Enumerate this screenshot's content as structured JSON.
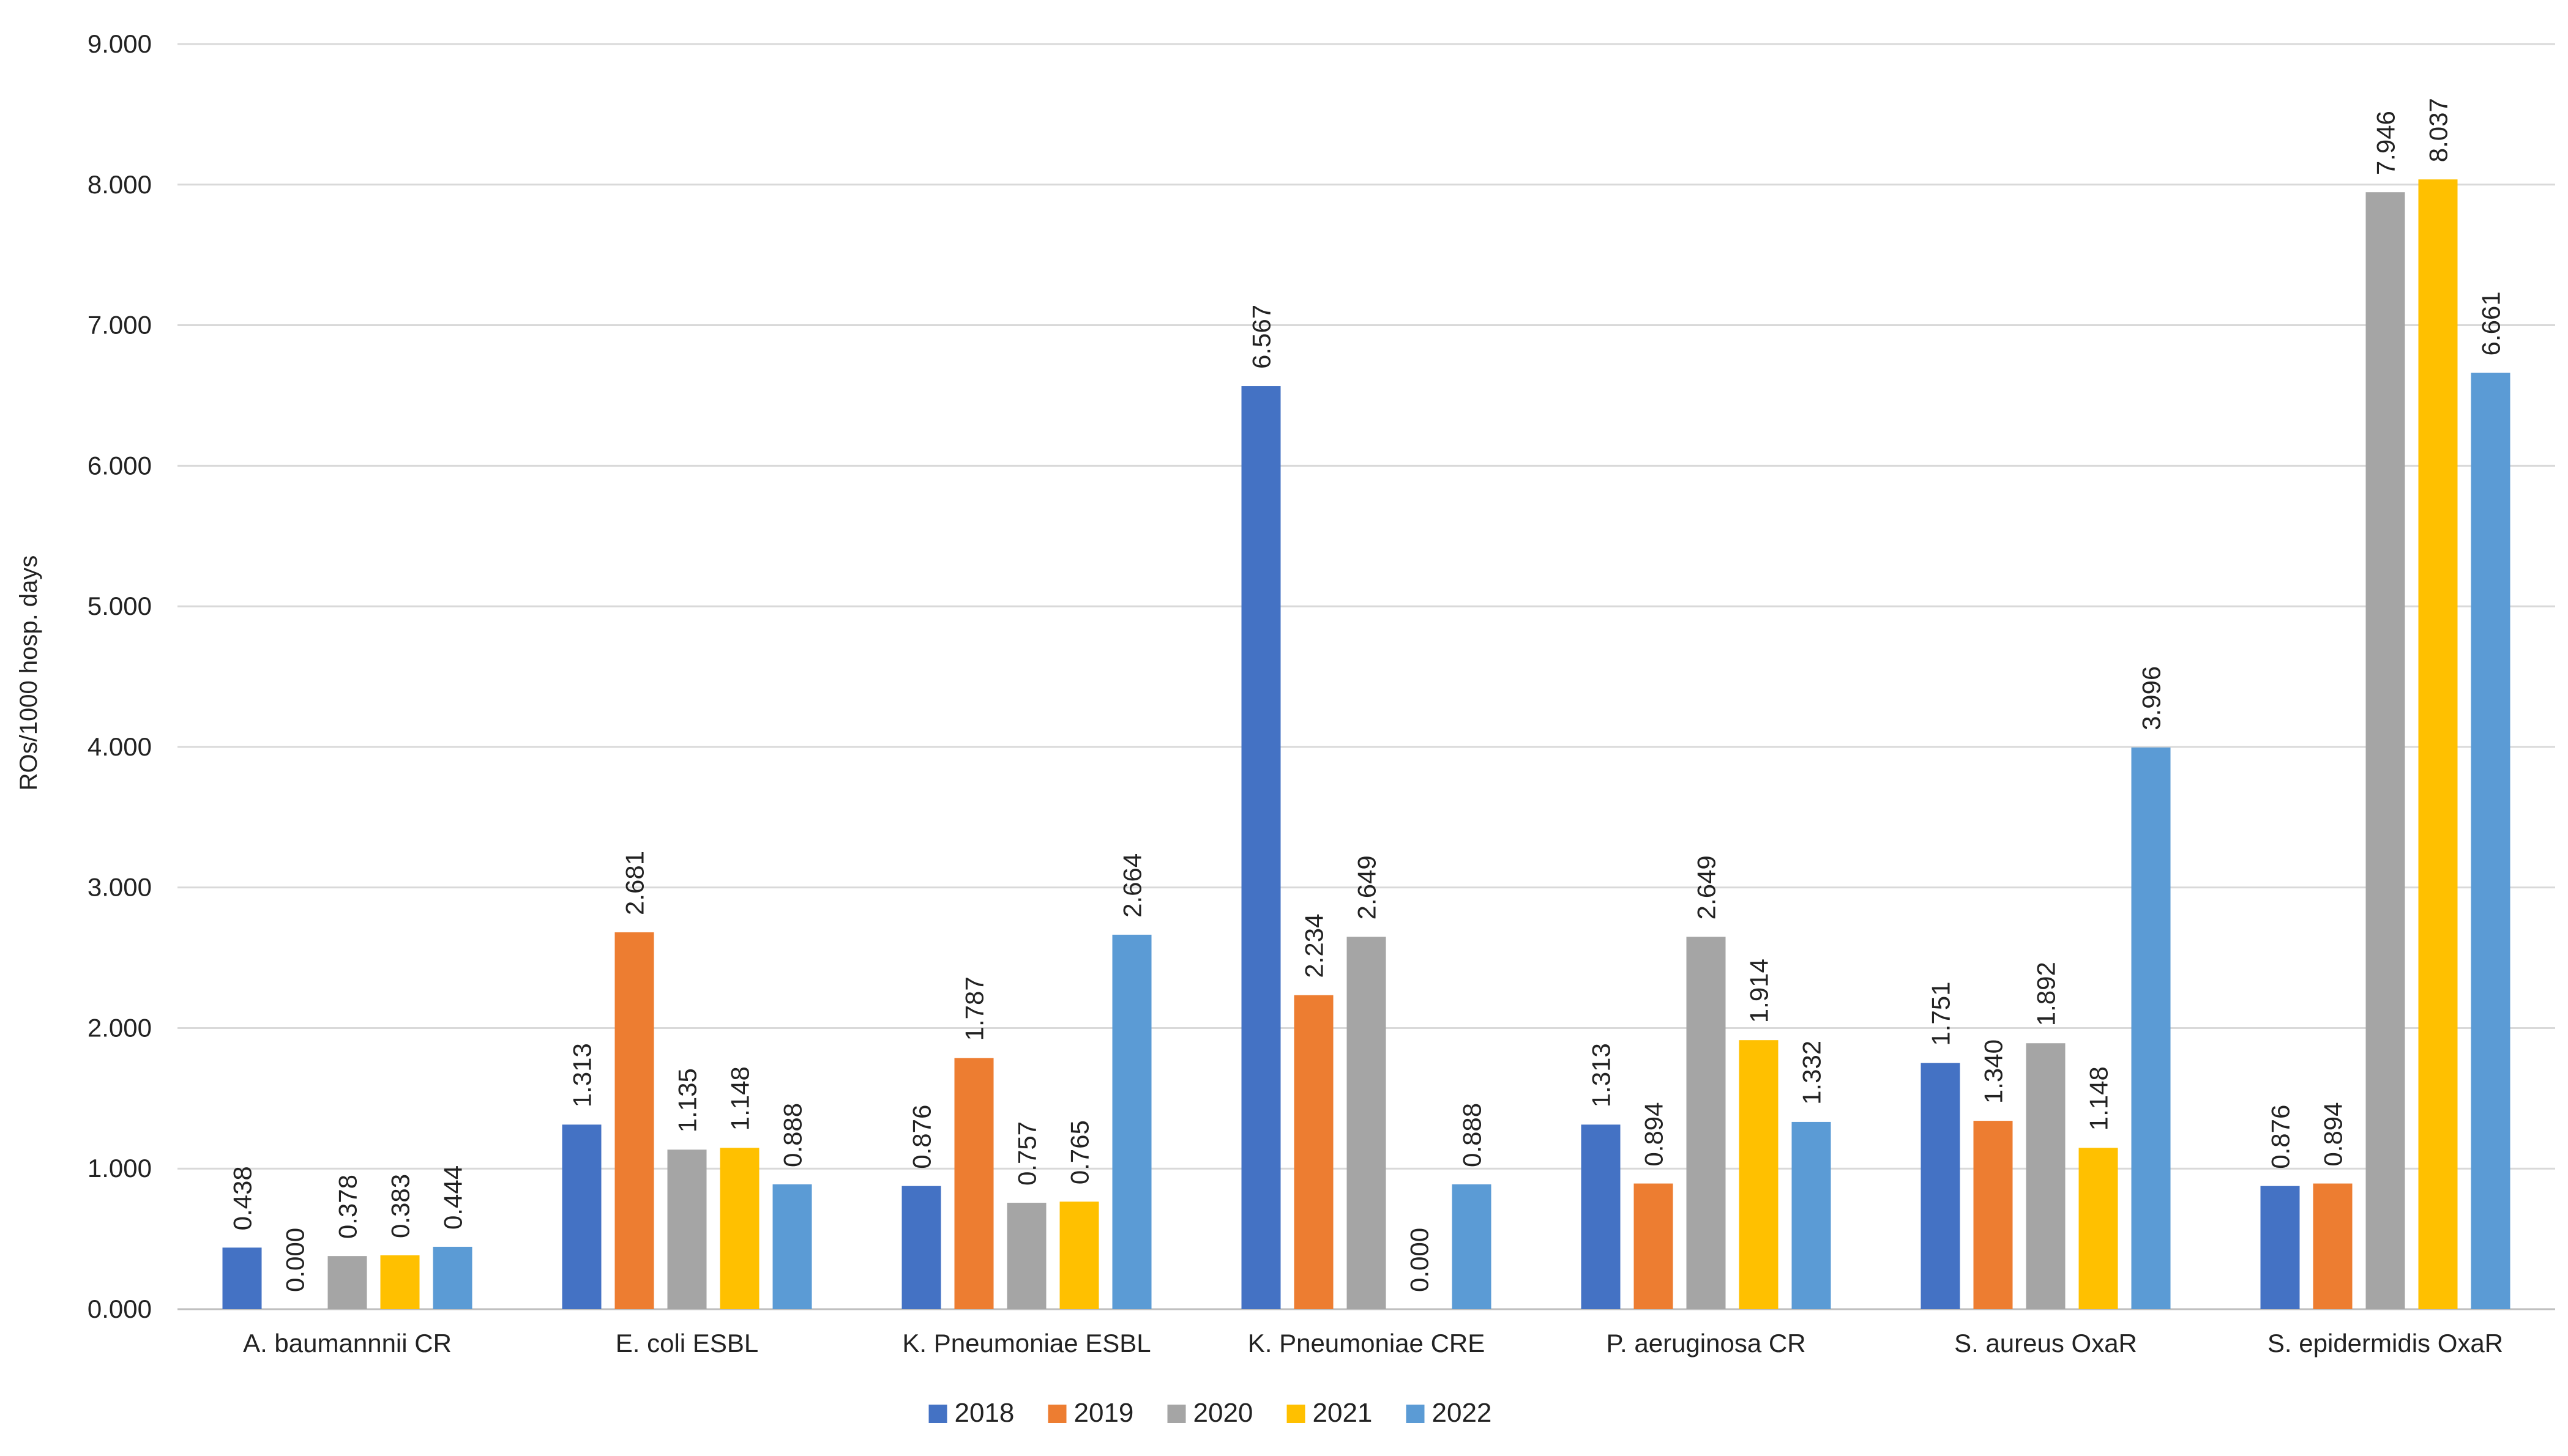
{
  "chart_data": {
    "type": "bar",
    "title": "",
    "xlabel": "",
    "ylabel": "ROs/1000 hosp. days",
    "ylim": [
      0,
      9
    ],
    "yticks": [
      0,
      1,
      2,
      3,
      4,
      5,
      6,
      7,
      8,
      9
    ],
    "ytick_labels": [
      "0.000",
      "1.000",
      "2.000",
      "3.000",
      "4.000",
      "5.000",
      "6.000",
      "7.000",
      "8.000",
      "9.000"
    ],
    "grid": true,
    "legend_position": "bottom-center",
    "categories": [
      "A. baumannnii CR",
      "E. coli ESBL",
      "K. Pneumoniae ESBL",
      "K. Pneumoniae CRE",
      "P. aeruginosa CR",
      "S. aureus OxaR",
      "S. epidermidis OxaR"
    ],
    "series": [
      {
        "name": "2018",
        "color": "#4472C4",
        "values": [
          0.438,
          1.313,
          0.876,
          6.567,
          1.313,
          1.751,
          0.876
        ],
        "labels": [
          "0.438",
          "1.313",
          "0.876",
          "6.567",
          "1.313",
          "1.751",
          "0.876"
        ]
      },
      {
        "name": "2019",
        "color": "#ED7D31",
        "values": [
          0.0,
          2.681,
          1.787,
          2.234,
          0.894,
          1.34,
          0.894
        ],
        "labels": [
          "0.000",
          "2.681",
          "1.787",
          "2.234",
          "0.894",
          "1.340",
          "0.894"
        ]
      },
      {
        "name": "2020",
        "color": "#A5A5A5",
        "values": [
          0.378,
          1.135,
          0.757,
          2.649,
          2.649,
          1.892,
          7.946
        ],
        "labels": [
          "0.378",
          "1.135",
          "0.757",
          "2.649",
          "2.649",
          "1.892",
          "7.946"
        ]
      },
      {
        "name": "2021",
        "color": "#FFC000",
        "values": [
          0.383,
          1.148,
          0.765,
          0.0,
          1.914,
          1.148,
          8.037
        ],
        "labels": [
          "0.383",
          "1.148",
          "0.765",
          "0.000",
          "1.914",
          "1.148",
          "8.037"
        ]
      },
      {
        "name": "2022",
        "color": "#5B9BD5",
        "values": [
          0.444,
          0.888,
          2.664,
          0.888,
          1.332,
          3.996,
          6.661
        ],
        "labels": [
          "0.444",
          "0.888",
          "2.664",
          "0.888",
          "1.332",
          "3.996",
          "6.661"
        ]
      }
    ]
  }
}
